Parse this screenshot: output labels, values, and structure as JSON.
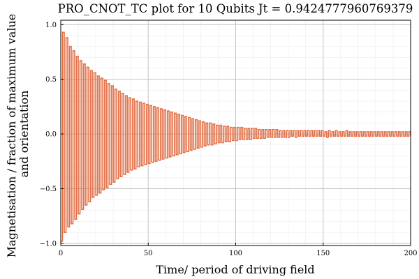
{
  "chart_data": {
    "type": "line",
    "step": true,
    "title": "PRO_CNOT_TC plot for 10 Qubits Jt = 0.9424777960769379",
    "xlabel": "Time/ period of driving field",
    "ylabel_lines": [
      "Magnetisation / fraction of maximum value",
      "and orientation"
    ],
    "xlim": [
      0,
      200
    ],
    "ylim": [
      -1.02,
      1.04
    ],
    "xticks": [
      0,
      50,
      100,
      150,
      200
    ],
    "xtick_labels": [
      "0",
      "50",
      "100",
      "150",
      "200"
    ],
    "yticks": [
      -1.0,
      -0.5,
      0.0,
      0.5,
      1.0
    ],
    "ytick_labels": [
      "−1.0",
      "−0.5",
      "0.0",
      "0.5",
      "1.0"
    ],
    "grid": true,
    "minor_grid": true,
    "series": [
      {
        "color": "#e26f46",
        "x": [
          0,
          1,
          2,
          3,
          4,
          5,
          6,
          7,
          8,
          9,
          10,
          11,
          12,
          13,
          14,
          15,
          16,
          17,
          18,
          19,
          20,
          21,
          22,
          23,
          24,
          25,
          26,
          27,
          28,
          29,
          30,
          31,
          32,
          33,
          34,
          35,
          36,
          37,
          38,
          39,
          40,
          41,
          42,
          43,
          44,
          45,
          46,
          47,
          48,
          49,
          50,
          51,
          52,
          53,
          54,
          55,
          56,
          57,
          58,
          59,
          60,
          61,
          62,
          63,
          64,
          65,
          66,
          67,
          68,
          69,
          70,
          71,
          72,
          73,
          74,
          75,
          76,
          77,
          78,
          79,
          80,
          81,
          82,
          83,
          84,
          85,
          86,
          87,
          88,
          89,
          90,
          91,
          92,
          93,
          94,
          95,
          96,
          97,
          98,
          99,
          100,
          101,
          102,
          103,
          104,
          105,
          106,
          107,
          108,
          109,
          110,
          111,
          112,
          113,
          114,
          115,
          116,
          117,
          118,
          119,
          120,
          121,
          122,
          123,
          124,
          125,
          126,
          127,
          128,
          129,
          130,
          131,
          132,
          133,
          134,
          135,
          136,
          137,
          138,
          139,
          140,
          141,
          142,
          143,
          144,
          145,
          146,
          147,
          148,
          149,
          150,
          151,
          152,
          153,
          154,
          155,
          156,
          157,
          158,
          159,
          160,
          161,
          162,
          163,
          164,
          165,
          166,
          167,
          168,
          169,
          170,
          171,
          172,
          173,
          174,
          175,
          176,
          177,
          178,
          179,
          180,
          181,
          182,
          183,
          184,
          185,
          186,
          187,
          188,
          189,
          190,
          191,
          192,
          193,
          194,
          195,
          196,
          197,
          198,
          199,
          200
        ],
        "y": [
          -0.98,
          0.93,
          -0.9,
          0.88,
          -0.85,
          0.8,
          -0.82,
          0.76,
          -0.78,
          0.71,
          -0.73,
          0.67,
          -0.69,
          0.64,
          -0.65,
          0.61,
          -0.62,
          0.58,
          -0.58,
          0.56,
          -0.56,
          0.53,
          -0.54,
          0.51,
          -0.51,
          0.49,
          -0.49,
          0.46,
          -0.46,
          0.44,
          -0.44,
          0.41,
          -0.41,
          0.39,
          -0.39,
          0.37,
          -0.37,
          0.35,
          -0.35,
          0.33,
          -0.33,
          0.32,
          -0.32,
          0.3,
          -0.3,
          0.29,
          -0.29,
          0.28,
          -0.28,
          0.27,
          -0.27,
          0.26,
          -0.26,
          0.25,
          -0.25,
          0.24,
          -0.24,
          0.23,
          -0.23,
          0.22,
          -0.22,
          0.21,
          -0.21,
          0.2,
          -0.2,
          0.19,
          -0.19,
          0.18,
          -0.18,
          0.17,
          -0.17,
          0.16,
          -0.16,
          0.15,
          -0.15,
          0.14,
          -0.14,
          0.13,
          -0.13,
          0.12,
          -0.12,
          0.11,
          -0.11,
          0.1,
          -0.1,
          0.1,
          -0.1,
          0.09,
          -0.09,
          0.08,
          -0.08,
          0.08,
          -0.08,
          0.07,
          -0.07,
          0.07,
          -0.07,
          0.06,
          -0.06,
          0.06,
          -0.06,
          0.06,
          -0.05,
          0.06,
          -0.05,
          0.05,
          -0.05,
          0.05,
          -0.05,
          0.05,
          -0.04,
          0.05,
          -0.04,
          0.04,
          -0.04,
          0.04,
          -0.04,
          0.04,
          -0.03,
          0.04,
          -0.03,
          0.04,
          -0.03,
          0.04,
          -0.03,
          0.03,
          -0.03,
          0.03,
          -0.03,
          0.03,
          -0.03,
          0.03,
          -0.02,
          0.03,
          -0.03,
          0.03,
          -0.02,
          0.03,
          -0.02,
          0.03,
          -0.02,
          0.03,
          -0.02,
          0.03,
          -0.02,
          0.03,
          -0.02,
          0.03,
          -0.02,
          0.03,
          -0.02,
          0.02,
          -0.03,
          0.03,
          -0.02,
          0.02,
          -0.02,
          0.03,
          -0.02,
          0.02,
          -0.02,
          0.02,
          -0.02,
          0.03,
          -0.02,
          0.02,
          -0.02,
          0.02,
          -0.02,
          0.02,
          -0.02,
          0.02,
          -0.02,
          0.02,
          -0.02,
          0.02,
          -0.02,
          0.02,
          -0.02,
          0.02,
          -0.02,
          0.02,
          -0.02,
          0.02,
          -0.02,
          0.02,
          -0.02,
          0.02,
          -0.02,
          0.02,
          -0.02,
          0.02,
          -0.02,
          0.02,
          -0.02,
          0.02,
          -0.02,
          0.02,
          -0.02,
          0.02,
          -0.02
        ]
      }
    ]
  }
}
